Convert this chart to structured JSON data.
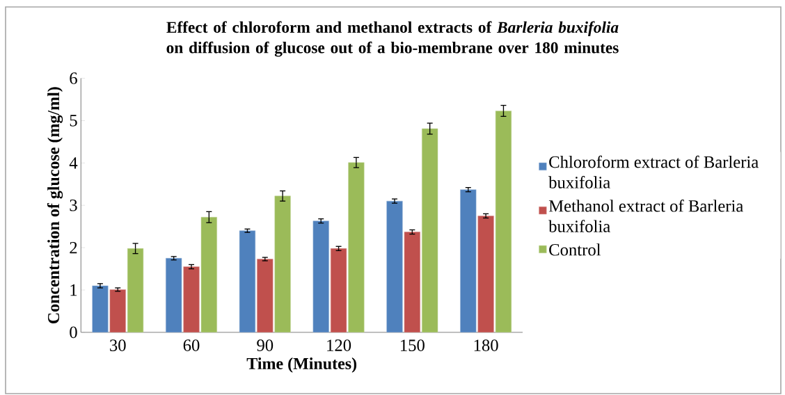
{
  "chart_data": {
    "type": "bar",
    "title": "Effect of chloroform and methanol extracts of *Barleria buxifolia* on diffusion of glucose out of a bio-membrane over 180 minutes",
    "xlabel": "Time (Minutes)",
    "ylabel": "Concentration of glucose (mg/ml)",
    "categories": [
      "30",
      "60",
      "90",
      "120",
      "150",
      "180"
    ],
    "series": [
      {
        "name": "Chloroform extract of Barleria buxifolia",
        "color": "#4f81bd",
        "values": [
          1.1,
          1.75,
          2.4,
          2.63,
          3.1,
          3.37
        ],
        "errors": [
          0.05,
          0.04,
          0.04,
          0.05,
          0.05,
          0.05
        ]
      },
      {
        "name": "Methanol extract of Barleria buxifolia",
        "color": "#c0504d",
        "values": [
          1.01,
          1.55,
          1.73,
          1.98,
          2.37,
          2.75
        ],
        "errors": [
          0.04,
          0.05,
          0.04,
          0.05,
          0.05,
          0.05
        ]
      },
      {
        "name": "Control",
        "color": "#9bbb59",
        "values": [
          1.98,
          2.72,
          3.22,
          4.01,
          4.81,
          5.23
        ],
        "errors": [
          0.12,
          0.13,
          0.12,
          0.12,
          0.13,
          0.13
        ]
      }
    ],
    "ylim": [
      0,
      6
    ],
    "yticks": [
      0,
      1,
      2,
      3,
      4,
      5,
      6
    ],
    "grid": false,
    "legend": "right"
  }
}
